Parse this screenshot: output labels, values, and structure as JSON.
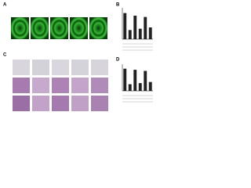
{
  "panels": [
    "A",
    "B",
    "C",
    "D"
  ],
  "chart_data": [
    {
      "type": "bar",
      "categories": [
        null,
        null,
        null,
        null,
        null,
        null
      ],
      "values": [
        1.0,
        0.35,
        0.9,
        0.4,
        0.85,
        0.45
      ],
      "color": "#222222",
      "ylim": [
        0,
        1.2
      ]
    },
    {
      "type": "bar",
      "categories": [
        null,
        null,
        null,
        null,
        null,
        null
      ],
      "values": [
        1.0,
        0.3,
        0.95,
        0.35,
        0.9,
        0.4
      ],
      "color": "#222222",
      "ylim": [
        0,
        1.2
      ]
    }
  ]
}
